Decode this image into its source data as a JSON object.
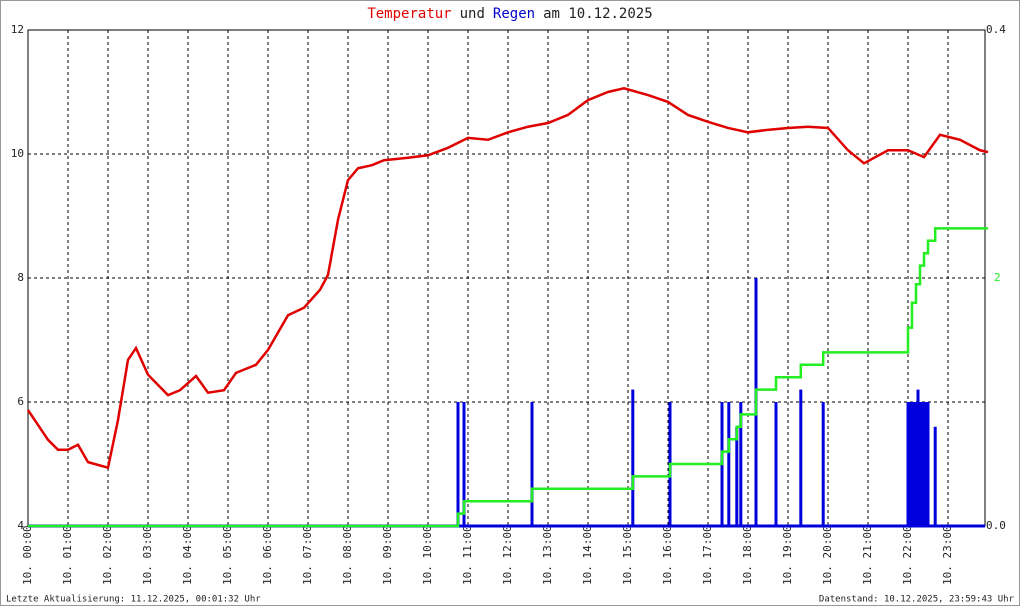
{
  "chart_data": {
    "type": "line",
    "title_parts": [
      {
        "text": "Temperatur",
        "color": "#e00000"
      },
      {
        "text": "und",
        "color": "#222222"
      },
      {
        "text": "Regen",
        "color": "#0000cc"
      },
      {
        "text": "am 10.12.2025",
        "color": "#222222"
      }
    ],
    "xlim": [
      0,
      24
    ],
    "xticks": [
      {
        "value": 0,
        "label": "10. 00:00"
      },
      {
        "value": 1,
        "label": "10. 01:00"
      },
      {
        "value": 2,
        "label": "10. 02:00"
      },
      {
        "value": 3,
        "label": "10. 03:00"
      },
      {
        "value": 4,
        "label": "10. 04:00"
      },
      {
        "value": 5,
        "label": "10. 05:00"
      },
      {
        "value": 6,
        "label": "10. 06:00"
      },
      {
        "value": 7,
        "label": "10. 07:00"
      },
      {
        "value": 8,
        "label": "10. 08:00"
      },
      {
        "value": 9,
        "label": "10. 09:00"
      },
      {
        "value": 10,
        "label": "10. 10:00"
      },
      {
        "value": 11,
        "label": "10. 11:00"
      },
      {
        "value": 12,
        "label": "10. 12:00"
      },
      {
        "value": 13,
        "label": "10. 13:00"
      },
      {
        "value": 14,
        "label": "10. 14:00"
      },
      {
        "value": 15,
        "label": "10. 15:00"
      },
      {
        "value": 16,
        "label": "10. 16:00"
      },
      {
        "value": 17,
        "label": "10. 17:00"
      },
      {
        "value": 18,
        "label": "10. 18:00"
      },
      {
        "value": 19,
        "label": "10. 19:00"
      },
      {
        "value": 20,
        "label": "10. 20:00"
      },
      {
        "value": 21,
        "label": "10. 21:00"
      },
      {
        "value": 22,
        "label": "10. 22:00"
      },
      {
        "value": 23,
        "label": "10. 23:00"
      }
    ],
    "ylim": [
      4,
      12
    ],
    "yticks": [
      4,
      6,
      8,
      10,
      12
    ],
    "y2lim": [
      0,
      0.4
    ],
    "y2ticks": [
      {
        "value": 0,
        "label": "0.0"
      },
      {
        "value": 0.4,
        "label": "0.4"
      }
    ],
    "y3lim": [
      0,
      4
    ],
    "y3ticks": [
      2
    ],
    "y3color": "#22ee22",
    "grid": true,
    "series": [
      {
        "type": "line",
        "color": "#e00000",
        "x": [
          0,
          0.5,
          0.75,
          1,
          1.25,
          1.5,
          2,
          2.25,
          2.5,
          2.7,
          3,
          3.5,
          3.8,
          4.2,
          4.5,
          4.9,
          5.2,
          5.7,
          6,
          6.5,
          6.9,
          7.3,
          7.5,
          7.75,
          8,
          8.25,
          8.6,
          8.9,
          9.5,
          10,
          10.5,
          11,
          11.5,
          12,
          12.5,
          13,
          13.5,
          14,
          14.5,
          14.9,
          15.5,
          16,
          16.5,
          17,
          17.5,
          18,
          18.5,
          19,
          19.5,
          20,
          20.5,
          20.9,
          21.5,
          22,
          22.4,
          22.8,
          23.3,
          23.8,
          24
        ],
        "values": [
          5.87,
          5.39,
          5.23,
          5.23,
          5.31,
          5.03,
          4.94,
          5.71,
          6.68,
          6.87,
          6.44,
          6.11,
          6.19,
          6.42,
          6.15,
          6.19,
          6.47,
          6.6,
          6.84,
          7.4,
          7.52,
          7.81,
          8.05,
          8.94,
          9.58,
          9.77,
          9.82,
          9.9,
          9.94,
          9.98,
          10.1,
          10.26,
          10.23,
          10.35,
          10.44,
          10.5,
          10.63,
          10.87,
          11.0,
          11.06,
          10.95,
          10.84,
          10.63,
          10.52,
          10.42,
          10.35,
          10.39,
          10.42,
          10.44,
          10.42,
          10.06,
          9.85,
          10.06,
          10.06,
          9.95,
          10.31,
          10.23,
          10.06,
          10.03
        ]
      },
      {
        "type": "bar",
        "axis": "y2",
        "color": "#0000dd",
        "x": [
          10.75,
          10.9,
          12.6,
          15.12,
          16.05,
          17.35,
          17.52,
          17.72,
          17.82,
          18.2,
          18.7,
          19.32,
          19.88,
          22.0,
          22.05,
          22.1,
          22.15,
          22.2,
          22.25,
          22.3,
          22.35,
          22.4,
          22.45,
          22.5,
          22.68
        ],
        "values": [
          0.1,
          0.1,
          0.1,
          0.11,
          0.1,
          0.1,
          0.1,
          0.08,
          0.1,
          0.2,
          0.1,
          0.11,
          0.1,
          0.1,
          0.1,
          0.1,
          0.1,
          0.1,
          0.11,
          0.1,
          0.1,
          0.1,
          0.1,
          0.1,
          0.08
        ]
      },
      {
        "type": "step",
        "axis": "y3",
        "color": "#22ee22",
        "x": [
          0,
          10.75,
          10.9,
          12.6,
          15.12,
          16.05,
          17.35,
          17.52,
          17.72,
          17.82,
          18.2,
          18.7,
          19.32,
          19.88,
          22.0,
          22.1,
          22.2,
          22.3,
          22.4,
          22.5,
          22.68,
          24
        ],
        "values": [
          0,
          0.1,
          0.2,
          0.3,
          0.4,
          0.5,
          0.6,
          0.7,
          0.8,
          0.9,
          1.1,
          1.2,
          1.3,
          1.4,
          1.6,
          1.8,
          1.95,
          2.1,
          2.2,
          2.3,
          2.4,
          2.4
        ]
      }
    ],
    "footer_left": "Letzte Aktualisierung: 11.12.2025, 00:01:32 Uhr",
    "footer_right": "Datenstand: 10.12.2025, 23:59:43 Uhr"
  }
}
